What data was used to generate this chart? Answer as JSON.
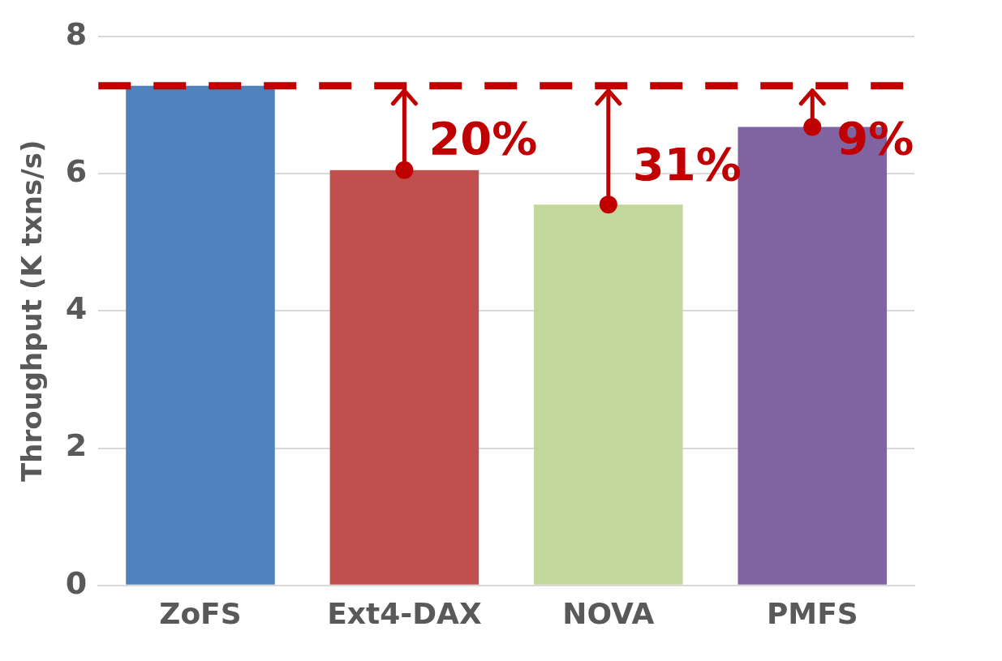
{
  "chart_data": {
    "type": "bar",
    "ylabel": "Throughput (K txns/s)",
    "categories": [
      "ZoFS",
      "Ext4-DAX",
      "NOVA",
      "PMFS"
    ],
    "series": [
      {
        "values": [
          7.28,
          6.05,
          5.55,
          6.68
        ],
        "colors": [
          "#4f81bd",
          "#c0504d",
          "#c3d69b",
          "#8064a2"
        ]
      },
      {
        "type": "scatter",
        "x": [
          "Ext4-DAX",
          "NOVA",
          "PMFS"
        ],
        "values": [
          6.05,
          5.55,
          6.68
        ],
        "color": "#c00000",
        "marker": "circle"
      }
    ],
    "ylim": [
      0,
      8
    ],
    "yticks": [
      0,
      2,
      4,
      6,
      8
    ],
    "grid": "y",
    "ref_lines": [
      {
        "axis": "y",
        "value": 7.28,
        "color": "#c00000",
        "line_style": "dashed"
      }
    ],
    "annotations": [
      {
        "text": "20%",
        "x": "Ext4-DAX",
        "y": 6.05
      },
      {
        "text": "31%",
        "x": "NOVA",
        "y": 5.55
      },
      {
        "text": "9%",
        "x": "PMFS",
        "y": 6.68
      }
    ]
  }
}
